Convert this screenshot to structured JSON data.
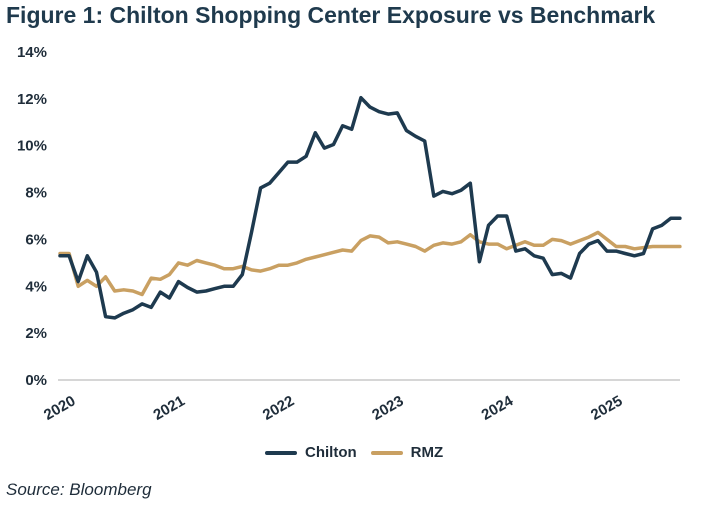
{
  "title": "Figure 1: Chilton Shopping Center Exposure vs Benchmark",
  "source": "Source: Bloomberg",
  "colors": {
    "chilton": "#1e3a4f",
    "rmz": "#c9a062",
    "axis": "#c8c8c8"
  },
  "chart_data": {
    "type": "line",
    "title": "Figure 1: Chilton Shopping Center Exposure vs Benchmark",
    "xlabel": "",
    "ylabel": "",
    "ylim": [
      0,
      14
    ],
    "yticks": [
      "0%",
      "2%",
      "4%",
      "6%",
      "8%",
      "10%",
      "12%",
      "14%"
    ],
    "xticks": [
      "2020",
      "2021",
      "2022",
      "2023",
      "2024",
      "2025"
    ],
    "grid": false,
    "legend_position": "bottom",
    "x": [
      "2020-01",
      "2020-02",
      "2020-03",
      "2020-04",
      "2020-05",
      "2020-06",
      "2020-07",
      "2020-08",
      "2020-09",
      "2020-10",
      "2020-11",
      "2020-12",
      "2021-01",
      "2021-02",
      "2021-03",
      "2021-04",
      "2021-05",
      "2021-06",
      "2021-07",
      "2021-08",
      "2021-09",
      "2021-10",
      "2021-11",
      "2021-12",
      "2022-01",
      "2022-02",
      "2022-03",
      "2022-04",
      "2022-05",
      "2022-06",
      "2022-07",
      "2022-08",
      "2022-09",
      "2022-10",
      "2022-11",
      "2022-12",
      "2023-01",
      "2023-02",
      "2023-03",
      "2023-04",
      "2023-05",
      "2023-06",
      "2023-07",
      "2023-08",
      "2023-09",
      "2023-10",
      "2023-11",
      "2023-12",
      "2024-01",
      "2024-02",
      "2024-03",
      "2024-04",
      "2024-05",
      "2024-06",
      "2024-07",
      "2024-08",
      "2024-09",
      "2024-10",
      "2024-11",
      "2024-12",
      "2025-01",
      "2025-02",
      "2025-03",
      "2025-04",
      "2025-05",
      "2025-06",
      "2025-07",
      "2025-08",
      "2025-09"
    ],
    "series": [
      {
        "name": "Chilton",
        "values": [
          5.3,
          5.3,
          4.2,
          5.3,
          4.6,
          2.7,
          2.65,
          2.85,
          3.0,
          3.25,
          3.1,
          3.75,
          3.5,
          4.2,
          3.95,
          3.75,
          3.8,
          3.9,
          4.0,
          4.0,
          4.5,
          6.3,
          8.2,
          8.4,
          8.85,
          9.3,
          9.3,
          9.55,
          10.55,
          9.9,
          10.05,
          10.85,
          10.7,
          12.05,
          11.65,
          11.45,
          11.35,
          11.4,
          10.65,
          10.4,
          10.2,
          7.85,
          8.05,
          7.95,
          8.1,
          8.4,
          5.05,
          6.6,
          7.0,
          7.0,
          5.5,
          5.6,
          5.3,
          5.2,
          4.5,
          4.55,
          4.35,
          5.4,
          5.8,
          5.95,
          5.5,
          5.5,
          5.4,
          5.3,
          5.4,
          6.45,
          6.6,
          6.9,
          6.9
        ]
      },
      {
        "name": "RMZ",
        "values": [
          5.4,
          5.4,
          4.0,
          4.25,
          4.0,
          4.4,
          3.8,
          3.85,
          3.8,
          3.65,
          4.35,
          4.3,
          4.5,
          5.0,
          4.9,
          5.1,
          5.0,
          4.9,
          4.75,
          4.75,
          4.85,
          4.7,
          4.65,
          4.75,
          4.9,
          4.9,
          5.0,
          5.15,
          5.25,
          5.35,
          5.45,
          5.55,
          5.5,
          5.95,
          6.15,
          6.1,
          5.85,
          5.9,
          5.8,
          5.7,
          5.5,
          5.75,
          5.85,
          5.8,
          5.9,
          6.2,
          5.9,
          5.8,
          5.8,
          5.6,
          5.75,
          5.9,
          5.75,
          5.75,
          6.0,
          5.95,
          5.8,
          5.95,
          6.1,
          6.3,
          6.0,
          5.7,
          5.7,
          5.6,
          5.65,
          5.7,
          5.7,
          5.7,
          5.7
        ]
      }
    ]
  }
}
